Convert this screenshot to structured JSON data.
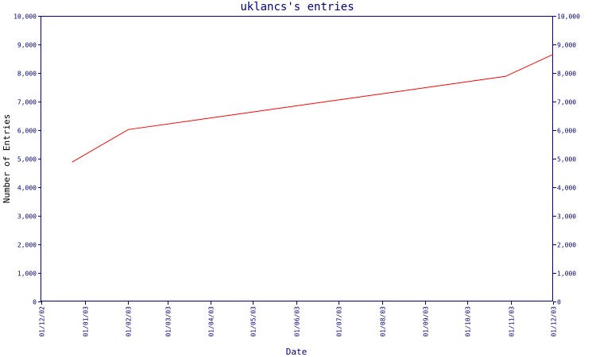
{
  "chart_data": {
    "type": "line",
    "title": "uklancs's entries",
    "xlabel": "Date",
    "ylabel": "Number of Entries",
    "ylim": [
      0,
      10000
    ],
    "yticks": [
      "0",
      "1,000",
      "2,000",
      "3,000",
      "4,000",
      "5,000",
      "6,000",
      "7,000",
      "8,000",
      "9,000",
      "10,000"
    ],
    "x_ticks": [
      "01/12/02",
      "01/01/03",
      "01/02/03",
      "01/03/03",
      "01/04/03",
      "01/05/03",
      "01/06/03",
      "01/07/03",
      "01/08/03",
      "01/09/03",
      "01/10/03",
      "01/11/03",
      "01/12/03"
    ],
    "xlim": [
      "2002-12-01",
      "2003-12-01"
    ],
    "grid": false,
    "right_axis": true,
    "colors": {
      "axis": "#000080",
      "series": "#ff0000",
      "background": "#ffffff"
    },
    "series": [
      {
        "x": [
          "2002-12-23",
          "2003-02-01",
          "2003-10-28",
          "2003-12-01"
        ],
        "y": [
          4880,
          6020,
          7880,
          8650
        ]
      }
    ]
  }
}
